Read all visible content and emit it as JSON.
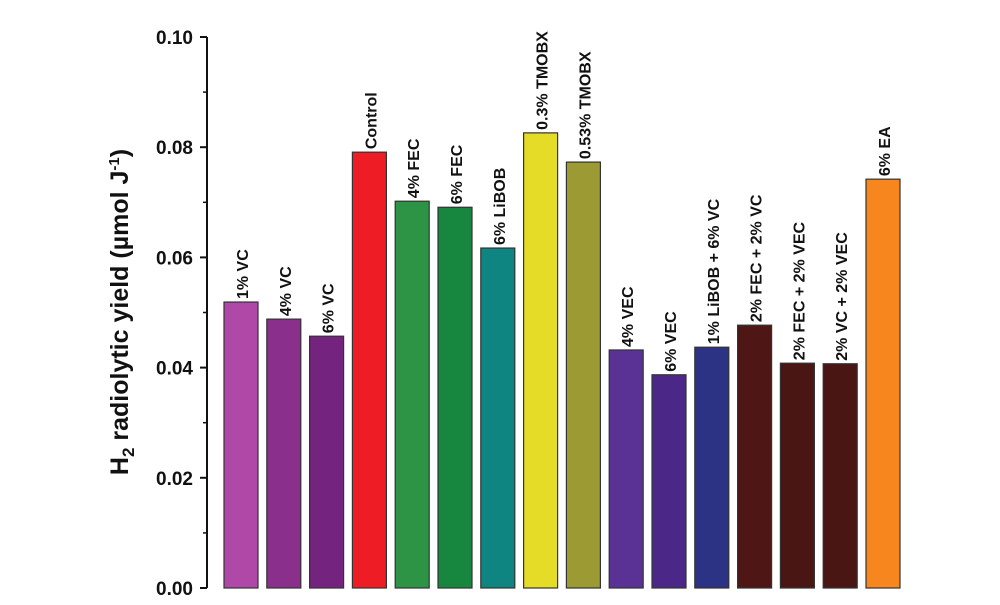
{
  "chart_data": {
    "type": "bar",
    "title": "",
    "xlabel": "",
    "ylabel": "H2 radiolytic yield (µmol J-1)",
    "ylabel_parts": {
      "main": "H",
      "sub": "2",
      "rest": " radiolytic yield (µmol J",
      "sup": "-1",
      "end": ")"
    },
    "ylim": [
      0,
      0.1
    ],
    "yticks": [
      "0.00",
      "0.02",
      "0.04",
      "0.06",
      "0.08",
      "0.10"
    ],
    "grid": false,
    "categories": [
      "1% VC",
      "4% VC",
      "6% VC",
      "Control",
      "4% FEC",
      "6% FEC",
      "6% LiBOB",
      "0.3% TMOBX",
      "0.53% TMOBX",
      "4% VEC",
      "6% VEC",
      "1% LiBOB + 6% VC",
      "2% FEC + 2% VC",
      "2% FEC + 2% VEC",
      "2% VC + 2% VEC",
      "6% EA"
    ],
    "values": [
      0.0519,
      0.0488,
      0.0457,
      0.0791,
      0.0702,
      0.0691,
      0.0617,
      0.0826,
      0.0773,
      0.0432,
      0.0387,
      0.0437,
      0.0477,
      0.0408,
      0.0407,
      0.0742
    ],
    "colors": [
      "#b048a8",
      "#8a2f8c",
      "#74247e",
      "#ee1c24",
      "#2e9445",
      "#178740",
      "#0e8580",
      "#e4dc26",
      "#9c9a32",
      "#5a3296",
      "#4b2888",
      "#2c3284",
      "#4e1614",
      "#4a1614",
      "#4a1614",
      "#f7861f"
    ]
  }
}
